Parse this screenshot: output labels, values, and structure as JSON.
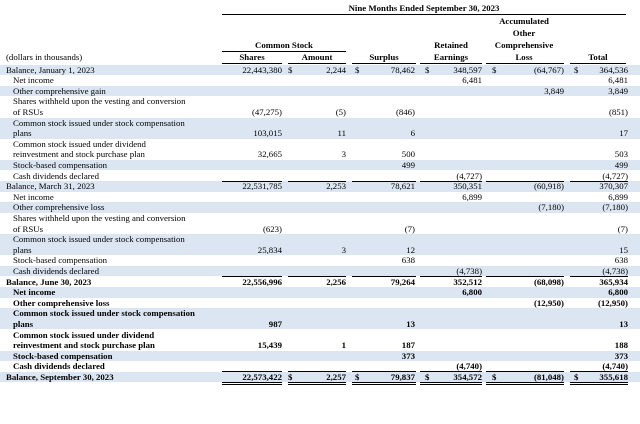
{
  "header": {
    "period_title": "Nine Months Ended September 30, 2023",
    "units_note": "(dollars in thousands)",
    "common_stock": "Common Stock",
    "shares": "Shares",
    "amount": "Amount",
    "surplus": "Surplus",
    "retained_1": "Retained",
    "retained_2": "Earnings",
    "aoci_1": "Accumulated",
    "aoci_2": "Other",
    "aoci_3": "Comprehensive",
    "aoci_4": "Loss",
    "total": "Total",
    "dollar": "$"
  },
  "rows": [
    {
      "label": "Balance, January 1, 2023",
      "indent": false,
      "shade": true,
      "bold": false,
      "dollar": true,
      "shares": "22,443,380",
      "amount": "2,244",
      "surplus": "78,462",
      "retained": "348,597",
      "aoci": "(64,767)",
      "total": "364,536"
    },
    {
      "label": "Net income",
      "indent": true,
      "shade": false,
      "bold": false,
      "dollar": false,
      "shares": "",
      "amount": "",
      "surplus": "",
      "retained": "6,481",
      "aoci": "",
      "total": "6,481"
    },
    {
      "label": "Other comprehensive gain",
      "indent": true,
      "shade": true,
      "bold": false,
      "dollar": false,
      "shares": "",
      "amount": "",
      "surplus": "",
      "retained": "",
      "aoci": "3,849",
      "total": "3,849"
    },
    {
      "label": "Shares withheld upon the vesting and conversion",
      "indent": true,
      "shade": false,
      "bold": false,
      "dollar": false,
      "shares": "",
      "amount": "",
      "surplus": "",
      "retained": "",
      "aoci": "",
      "total": ""
    },
    {
      "label": "of RSUs",
      "indent": true,
      "shade": false,
      "bold": false,
      "dollar": false,
      "shares": "(47,275)",
      "amount": "(5)",
      "surplus": "(846)",
      "retained": "",
      "aoci": "",
      "total": "(851)"
    },
    {
      "label": "Common stock issued under stock compensation",
      "indent": true,
      "shade": true,
      "bold": false,
      "dollar": false,
      "shares": "",
      "amount": "",
      "surplus": "",
      "retained": "",
      "aoci": "",
      "total": ""
    },
    {
      "label": "plans",
      "indent": true,
      "shade": true,
      "bold": false,
      "dollar": false,
      "shares": "103,015",
      "amount": "11",
      "surplus": "6",
      "retained": "",
      "aoci": "",
      "total": "17"
    },
    {
      "label": "Common stock issued under dividend",
      "indent": true,
      "shade": false,
      "bold": false,
      "dollar": false,
      "shares": "",
      "amount": "",
      "surplus": "",
      "retained": "",
      "aoci": "",
      "total": ""
    },
    {
      "label": "reinvestment and stock purchase plan",
      "indent": true,
      "shade": false,
      "bold": false,
      "dollar": false,
      "shares": "32,665",
      "amount": "3",
      "surplus": "500",
      "retained": "",
      "aoci": "",
      "total": "503"
    },
    {
      "label": "Stock-based compensation",
      "indent": true,
      "shade": true,
      "bold": false,
      "dollar": false,
      "shares": "",
      "amount": "",
      "surplus": "499",
      "retained": "",
      "aoci": "",
      "total": "499"
    },
    {
      "label": "Cash dividends declared",
      "indent": true,
      "shade": false,
      "bold": false,
      "dollar": false,
      "shares": "",
      "amount": "",
      "surplus": "",
      "retained": "(4,727)",
      "aoci": "",
      "total": "(4,727)"
    },
    {
      "label": "Balance, March 31, 2023",
      "indent": false,
      "shade": true,
      "bold": false,
      "dollar": false,
      "shares": "22,531,785",
      "amount": "2,253",
      "surplus": "78,621",
      "retained": "350,351",
      "aoci": "(60,918)",
      "total": "370,307"
    },
    {
      "label": "Net income",
      "indent": true,
      "shade": false,
      "bold": false,
      "dollar": false,
      "shares": "",
      "amount": "",
      "surplus": "",
      "retained": "6,899",
      "aoci": "",
      "total": "6,899"
    },
    {
      "label": "Other comprehensive loss",
      "indent": true,
      "shade": true,
      "bold": false,
      "dollar": false,
      "shares": "",
      "amount": "",
      "surplus": "",
      "retained": "",
      "aoci": "(7,180)",
      "total": "(7,180)"
    },
    {
      "label": "Shares withheld upon the vesting and conversion",
      "indent": true,
      "shade": false,
      "bold": false,
      "dollar": false,
      "shares": "",
      "amount": "",
      "surplus": "",
      "retained": "",
      "aoci": "",
      "total": ""
    },
    {
      "label": "of RSUs",
      "indent": true,
      "shade": false,
      "bold": false,
      "dollar": false,
      "shares": "(623)",
      "amount": "",
      "surplus": "(7)",
      "retained": "",
      "aoci": "",
      "total": "(7)"
    },
    {
      "label": "Common stock issued under stock compensation",
      "indent": true,
      "shade": true,
      "bold": false,
      "dollar": false,
      "shares": "",
      "amount": "",
      "surplus": "",
      "retained": "",
      "aoci": "",
      "total": ""
    },
    {
      "label": "plans",
      "indent": true,
      "shade": true,
      "bold": false,
      "dollar": false,
      "shares": "25,834",
      "amount": "3",
      "surplus": "12",
      "retained": "",
      "aoci": "",
      "total": "15"
    },
    {
      "label": "Stock-based compensation",
      "indent": true,
      "shade": false,
      "bold": false,
      "dollar": false,
      "shares": "",
      "amount": "",
      "surplus": "638",
      "retained": "",
      "aoci": "",
      "total": "638"
    },
    {
      "label": "Cash dividends declared",
      "indent": true,
      "shade": true,
      "bold": false,
      "dollar": false,
      "shares": "",
      "amount": "",
      "surplus": "",
      "retained": "(4,738)",
      "aoci": "",
      "total": "(4,738)"
    },
    {
      "label": "Balance, June 30, 2023",
      "indent": false,
      "shade": false,
      "bold": true,
      "dollar": false,
      "shares": "22,556,996",
      "amount": "2,256",
      "surplus": "79,264",
      "retained": "352,512",
      "aoci": "(68,098)",
      "total": "365,934"
    },
    {
      "label": "Net income",
      "indent": true,
      "shade": true,
      "bold": true,
      "dollar": false,
      "shares": "",
      "amount": "",
      "surplus": "",
      "retained": "6,800",
      "aoci": "",
      "total": "6,800"
    },
    {
      "label": "Other comprehensive loss",
      "indent": true,
      "shade": false,
      "bold": true,
      "dollar": false,
      "shares": "",
      "amount": "",
      "surplus": "",
      "retained": "",
      "aoci": "(12,950)",
      "total": "(12,950)"
    },
    {
      "label": "Common stock issued under stock compensation",
      "indent": true,
      "shade": true,
      "bold": true,
      "dollar": false,
      "shares": "",
      "amount": "",
      "surplus": "",
      "retained": "",
      "aoci": "",
      "total": ""
    },
    {
      "label": "plans",
      "indent": true,
      "shade": true,
      "bold": true,
      "dollar": false,
      "shares": "987",
      "amount": "",
      "surplus": "13",
      "retained": "",
      "aoci": "",
      "total": "13"
    },
    {
      "label": "Common stock issued under dividend",
      "indent": true,
      "shade": false,
      "bold": true,
      "dollar": false,
      "shares": "",
      "amount": "",
      "surplus": "",
      "retained": "",
      "aoci": "",
      "total": ""
    },
    {
      "label": "reinvestment and stock purchase plan",
      "indent": true,
      "shade": false,
      "bold": true,
      "dollar": false,
      "shares": "15,439",
      "amount": "1",
      "surplus": "187",
      "retained": "",
      "aoci": "",
      "total": "188"
    },
    {
      "label": "Stock-based compensation",
      "indent": true,
      "shade": true,
      "bold": true,
      "dollar": false,
      "shares": "",
      "amount": "",
      "surplus": "373",
      "retained": "",
      "aoci": "",
      "total": "373"
    },
    {
      "label": "Cash dividends declared",
      "indent": true,
      "shade": false,
      "bold": true,
      "dollar": false,
      "shares": "",
      "amount": "",
      "surplus": "",
      "retained": "(4,740)",
      "aoci": "",
      "total": "(4,740)"
    },
    {
      "label": "Balance, September 30, 2023",
      "indent": false,
      "shade": true,
      "bold": true,
      "dollar": true,
      "shares": "22,573,422",
      "amount": "2,257",
      "surplus": "79,837",
      "retained": "354,572",
      "aoci": "(81,048)",
      "total": "355,618"
    }
  ]
}
